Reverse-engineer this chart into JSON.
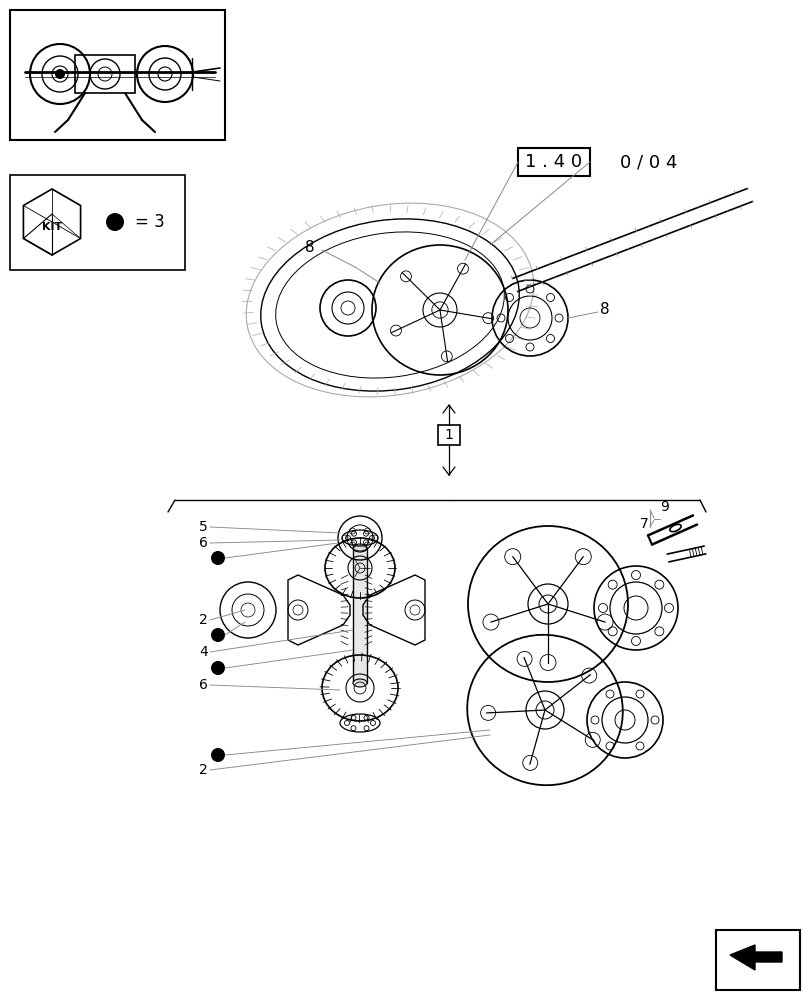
{
  "bg_color": "#ffffff",
  "lc": "#000000",
  "gray": "#888888",
  "lgray": "#aaaaaa",
  "title_box": "1 . 4 0",
  "title_extra": "0 / 0 4",
  "kit_text": "KIT",
  "kit_eq": "= 3",
  "figsize": [
    8.12,
    10.0
  ],
  "dpi": 100
}
